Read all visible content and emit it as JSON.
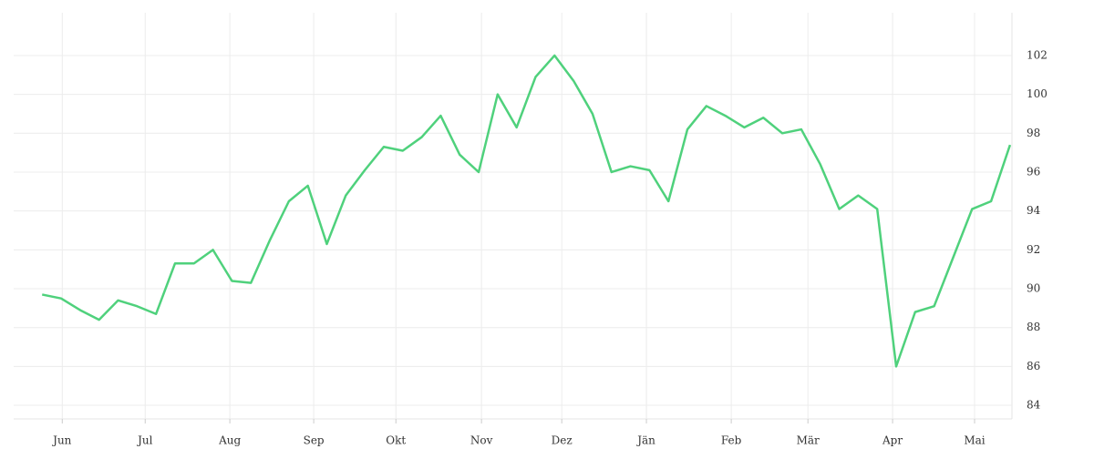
{
  "chart_data": {
    "type": "line",
    "x": [
      0,
      1,
      2,
      3,
      4,
      5,
      6,
      7,
      8,
      9,
      10,
      11,
      12,
      13,
      14,
      15,
      16,
      17,
      18,
      19,
      20,
      21,
      22,
      23,
      24,
      25,
      26,
      27,
      28,
      29,
      30,
      31,
      32,
      33,
      34,
      35,
      36,
      37,
      38,
      39,
      40,
      41,
      42,
      43,
      44,
      45,
      46,
      47,
      48,
      49,
      50,
      51
    ],
    "series": [
      {
        "color": "#4fd17c",
        "values": [
          89.7,
          89.5,
          88.9,
          88.4,
          89.4,
          89.1,
          88.7,
          91.3,
          91.3,
          92.0,
          90.4,
          90.3,
          92.5,
          94.5,
          95.3,
          92.3,
          94.8,
          96.1,
          97.3,
          97.1,
          97.8,
          98.9,
          96.9,
          96.0,
          100.0,
          98.3,
          100.9,
          102.0,
          100.7,
          99.0,
          96.0,
          96.3,
          96.1,
          94.5,
          98.2,
          99.4,
          98.9,
          98.3,
          98.8,
          98.0,
          98.2,
          96.4,
          94.1,
          94.8,
          94.1,
          86.0,
          88.8,
          89.1,
          91.6,
          94.1,
          94.5,
          97.4
        ]
      }
    ],
    "xlim": [
      -1.5,
      51.1
    ],
    "xticks": [
      {
        "value": 1.06,
        "label": "Jun"
      },
      {
        "value": 5.43,
        "label": "Jul"
      },
      {
        "value": 9.89,
        "label": "Aug"
      },
      {
        "value": 14.31,
        "label": "Sep"
      },
      {
        "value": 18.64,
        "label": "Okt"
      },
      {
        "value": 23.15,
        "label": "Nov"
      },
      {
        "value": 27.38,
        "label": "Dez"
      },
      {
        "value": 31.84,
        "label": "Jän"
      },
      {
        "value": 36.31,
        "label": "Feb"
      },
      {
        "value": 40.35,
        "label": "Mär"
      },
      {
        "value": 44.81,
        "label": "Apr"
      },
      {
        "value": 49.13,
        "label": "Mai"
      }
    ],
    "ylim": [
      83.3,
      104.2
    ],
    "yticks": [
      84,
      86,
      88,
      90,
      92,
      94,
      96,
      98,
      100,
      102
    ],
    "grid": true
  }
}
